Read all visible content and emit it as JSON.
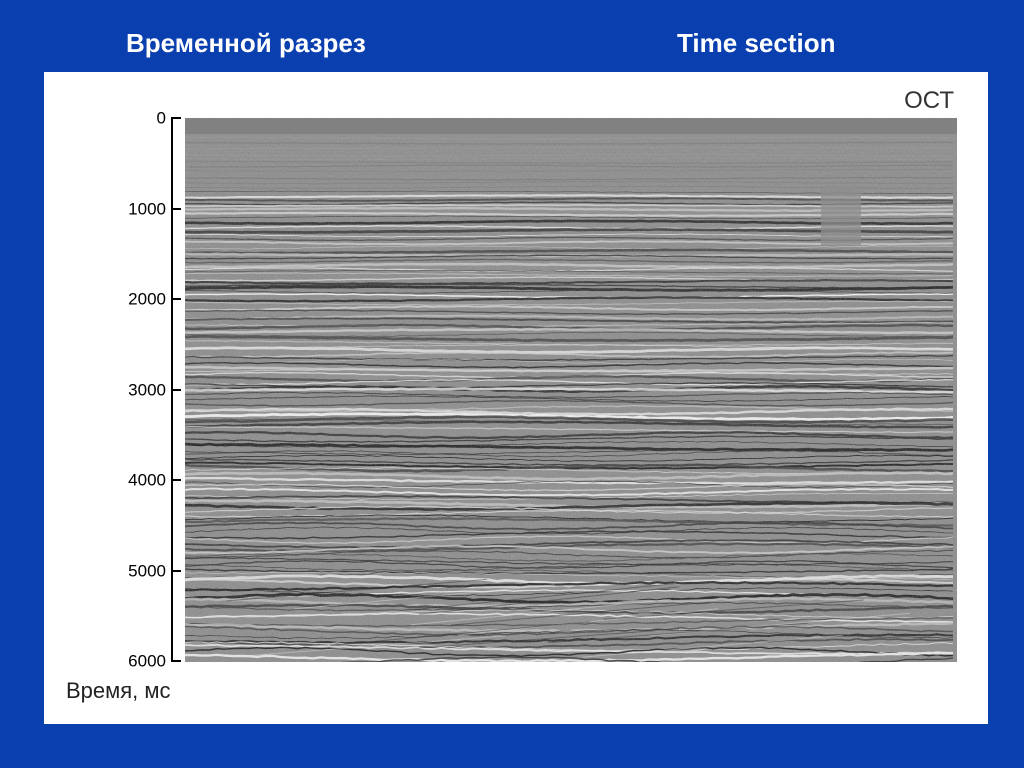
{
  "slide": {
    "title_ru": "Временной разрез",
    "title_en": "Time section"
  },
  "figure": {
    "corner_label": "ОСТ",
    "axis": {
      "title": "Время, мс",
      "ticks": [
        "0",
        "1000",
        "2000",
        "3000",
        "4000",
        "5000",
        "6000"
      ]
    }
  },
  "colors": {
    "background": "#0a3fb0",
    "panel": "#ffffff",
    "title_text": "#ffffff"
  }
}
